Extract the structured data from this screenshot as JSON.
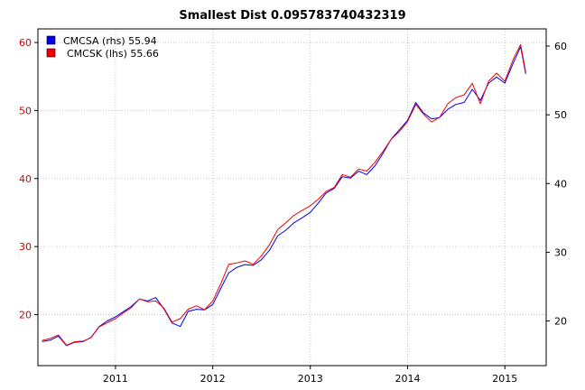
{
  "chart_data": {
    "type": "line",
    "title": "Smallest Dist 0.095783740432319",
    "xlabel": "",
    "ylabel": "",
    "x_ticks": [
      "2011",
      "2012",
      "2013",
      "2014",
      "2015"
    ],
    "y_left_ticks": [
      "20",
      "30",
      "40",
      "50",
      "60"
    ],
    "y_right_ticks": [
      "20",
      "30",
      "40",
      "50",
      "60"
    ],
    "ylim_left": [
      12.5,
      62
    ],
    "ylim_right": [
      13.5,
      62.5
    ],
    "xlim": [
      "2010-03-16",
      "2015-06-05"
    ],
    "grid": true,
    "legend_position": "top-left",
    "legend": [
      {
        "label": "CMCSA (rhs) 55.94",
        "color": "#0000ee"
      },
      {
        "label": "CMCSK (lhs) 55.66",
        "color": "#ee0000"
      }
    ],
    "series": [
      {
        "name": "CMCSA (rhs)",
        "axis": "right",
        "color": "#0000ee",
        "x": [
          "2010-04-01",
          "2010-05-01",
          "2010-06-01",
          "2010-07-01",
          "2010-08-01",
          "2010-09-01",
          "2010-10-01",
          "2010-11-01",
          "2010-12-01",
          "2011-01-01",
          "2011-02-01",
          "2011-03-01",
          "2011-04-01",
          "2011-05-01",
          "2011-06-01",
          "2011-07-01",
          "2011-08-01",
          "2011-09-01",
          "2011-10-01",
          "2011-11-01",
          "2011-12-01",
          "2012-01-01",
          "2012-02-01",
          "2012-03-01",
          "2012-04-01",
          "2012-05-01",
          "2012-06-01",
          "2012-07-01",
          "2012-08-01",
          "2012-09-01",
          "2012-10-01",
          "2012-11-01",
          "2012-12-01",
          "2013-01-01",
          "2013-02-01",
          "2013-03-01",
          "2013-04-01",
          "2013-05-01",
          "2013-06-01",
          "2013-07-01",
          "2013-08-01",
          "2013-09-01",
          "2013-10-01",
          "2013-11-01",
          "2013-12-01",
          "2014-01-01",
          "2014-02-01",
          "2014-03-01",
          "2014-04-01",
          "2014-05-01",
          "2014-06-01",
          "2014-07-01",
          "2014-08-01",
          "2014-09-01",
          "2014-10-01",
          "2014-11-01",
          "2014-12-01",
          "2015-01-01",
          "2015-02-01",
          "2015-03-01",
          "2015-03-20"
        ],
        "values": [
          17.0,
          17.2,
          17.8,
          16.4,
          16.9,
          17.0,
          17.6,
          19.2,
          20.0,
          20.6,
          21.4,
          22.1,
          23.2,
          22.9,
          23.4,
          21.8,
          19.7,
          19.2,
          21.4,
          21.7,
          21.6,
          22.4,
          24.8,
          27.0,
          27.8,
          28.2,
          28.1,
          28.9,
          30.3,
          32.4,
          33.2,
          34.3,
          35.0,
          35.8,
          37.2,
          38.6,
          39.3,
          41.0,
          40.8,
          41.8,
          41.3,
          42.6,
          44.4,
          46.5,
          47.8,
          49.2,
          51.8,
          50.3,
          49.4,
          49.6,
          50.8,
          51.5,
          51.8,
          53.7,
          52.1,
          54.6,
          55.5,
          54.6,
          57.5,
          59.9,
          55.94
        ]
      },
      {
        "name": "CMCSK (lhs)",
        "axis": "left",
        "color": "#ee0000",
        "x": [
          "2010-04-01",
          "2010-05-01",
          "2010-06-01",
          "2010-07-01",
          "2010-08-01",
          "2010-09-01",
          "2010-10-01",
          "2010-11-01",
          "2010-12-01",
          "2011-01-01",
          "2011-02-01",
          "2011-03-01",
          "2011-04-01",
          "2011-05-01",
          "2011-06-01",
          "2011-07-01",
          "2011-08-01",
          "2011-09-01",
          "2011-10-01",
          "2011-11-01",
          "2011-12-01",
          "2012-01-01",
          "2012-02-01",
          "2012-03-01",
          "2012-04-01",
          "2012-05-01",
          "2012-06-01",
          "2012-07-01",
          "2012-08-01",
          "2012-09-01",
          "2012-10-01",
          "2012-11-01",
          "2012-12-01",
          "2013-01-01",
          "2013-02-01",
          "2013-03-01",
          "2013-04-01",
          "2013-05-01",
          "2013-06-01",
          "2013-07-01",
          "2013-08-01",
          "2013-09-01",
          "2013-10-01",
          "2013-11-01",
          "2013-12-01",
          "2014-01-01",
          "2014-02-01",
          "2014-03-01",
          "2014-04-01",
          "2014-05-01",
          "2014-06-01",
          "2014-07-01",
          "2014-08-01",
          "2014-09-01",
          "2014-10-01",
          "2014-11-01",
          "2014-12-01",
          "2015-01-01",
          "2015-02-01",
          "2015-03-01",
          "2015-03-20"
        ],
        "values": [
          16.2,
          16.5,
          17.0,
          15.5,
          16.0,
          16.1,
          16.6,
          18.2,
          18.8,
          19.4,
          20.3,
          21.0,
          22.3,
          21.9,
          22.0,
          21.0,
          18.9,
          19.4,
          20.8,
          21.3,
          20.7,
          22.0,
          24.6,
          27.4,
          27.6,
          27.9,
          27.4,
          28.6,
          30.3,
          32.5,
          33.5,
          34.6,
          35.3,
          36.0,
          37.0,
          38.1,
          38.7,
          40.6,
          40.2,
          41.4,
          41.1,
          42.4,
          44.0,
          45.8,
          46.9,
          48.4,
          50.9,
          49.5,
          48.3,
          49.0,
          51.0,
          51.9,
          52.3,
          54.0,
          51.0,
          54.3,
          55.5,
          54.3,
          57.5,
          59.7,
          55.66
        ]
      }
    ]
  }
}
